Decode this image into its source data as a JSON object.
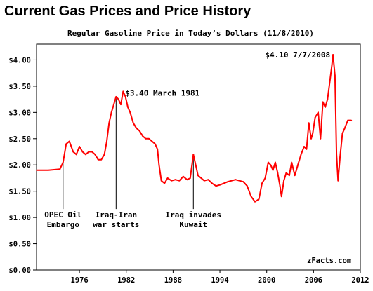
{
  "chart_data": {
    "type": "line",
    "title": "Current Gas Prices and Price History",
    "subtitle": "Regular Gasoline Price in Today’s Dollars (11/8/2010)",
    "source": "zFacts.com",
    "xlabel": "",
    "ylabel": "",
    "xlim": [
      1970.5,
      2012
    ],
    "ylim": [
      0,
      4.3
    ],
    "grid": false,
    "x_ticks": [
      1976,
      1982,
      1988,
      1994,
      2000,
      2006,
      2012
    ],
    "x_tick_labels": [
      "1976",
      "1982",
      "1988",
      "1994",
      "2000",
      "2006",
      "2012"
    ],
    "y_ticks": [
      0,
      0.5,
      1.0,
      1.5,
      2.0,
      2.5,
      3.0,
      3.5,
      4.0
    ],
    "y_tick_labels": [
      "$0.00",
      "$0.50",
      "$1.00",
      "$1.50",
      "$2.00",
      "$2.50",
      "$3.00",
      "$3.50",
      "$4.00"
    ],
    "series": [
      {
        "color": "#ff0000",
        "x": [
          1970.5,
          1972.0,
          1973.5,
          1973.9,
          1974.3,
          1974.7,
          1975.2,
          1975.6,
          1976.0,
          1976.4,
          1976.8,
          1977.2,
          1977.6,
          1978.0,
          1978.4,
          1978.8,
          1979.2,
          1979.5,
          1979.8,
          1980.1,
          1980.4,
          1980.7,
          1981.0,
          1981.3,
          1981.6,
          1981.9,
          1982.2,
          1982.5,
          1982.9,
          1983.3,
          1983.7,
          1984.1,
          1984.5,
          1984.9,
          1985.3,
          1985.7,
          1986.0,
          1986.2,
          1986.5,
          1986.9,
          1987.3,
          1987.8,
          1988.3,
          1988.8,
          1989.3,
          1989.8,
          1990.2,
          1990.6,
          1990.9,
          1991.2,
          1991.6,
          1992.0,
          1992.5,
          1993.0,
          1993.5,
          1994.0,
          1994.5,
          1995.0,
          1995.5,
          1996.0,
          1996.5,
          1997.0,
          1997.5,
          1998.0,
          1998.5,
          1999.0,
          1999.4,
          1999.8,
          2000.2,
          2000.5,
          2000.8,
          2001.1,
          2001.4,
          2001.7,
          2001.9,
          2002.2,
          2002.5,
          2002.9,
          2003.2,
          2003.6,
          2004.0,
          2004.4,
          2004.8,
          2005.1,
          2005.4,
          2005.7,
          2005.9,
          2006.2,
          2006.6,
          2006.9,
          2007.2,
          2007.5,
          2007.8,
          2008.1,
          2008.35,
          2008.5,
          2008.75,
          2008.95,
          2009.15,
          2009.4,
          2009.7,
          2010.0,
          2010.4,
          2010.85
        ],
        "y": [
          1.9,
          1.9,
          1.92,
          2.05,
          2.4,
          2.45,
          2.25,
          2.2,
          2.35,
          2.25,
          2.2,
          2.25,
          2.25,
          2.2,
          2.1,
          2.1,
          2.2,
          2.45,
          2.8,
          3.0,
          3.15,
          3.3,
          3.25,
          3.15,
          3.4,
          3.3,
          3.1,
          3.0,
          2.8,
          2.7,
          2.65,
          2.55,
          2.5,
          2.5,
          2.45,
          2.4,
          2.3,
          2.0,
          1.7,
          1.65,
          1.75,
          1.7,
          1.72,
          1.7,
          1.78,
          1.72,
          1.75,
          2.2,
          2.0,
          1.8,
          1.75,
          1.7,
          1.72,
          1.65,
          1.6,
          1.62,
          1.65,
          1.68,
          1.7,
          1.72,
          1.7,
          1.68,
          1.6,
          1.4,
          1.3,
          1.35,
          1.65,
          1.75,
          2.05,
          2.0,
          1.9,
          2.05,
          1.85,
          1.6,
          1.4,
          1.7,
          1.85,
          1.8,
          2.05,
          1.8,
          2.0,
          2.2,
          2.35,
          2.3,
          2.8,
          2.5,
          2.6,
          2.9,
          3.0,
          2.5,
          3.2,
          3.1,
          3.25,
          3.6,
          3.9,
          4.1,
          3.7,
          2.2,
          1.7,
          2.15,
          2.6,
          2.7,
          2.85,
          2.85
        ]
      }
    ],
    "annotations": [
      {
        "line1": "OPEC Oil",
        "line2": "Embargo",
        "x": 1973.9
      },
      {
        "line1": "Iraq-Iran",
        "line2": "war starts",
        "x": 1980.7
      },
      {
        "line1": "Iraq invades",
        "line2": "Kuwait",
        "x": 1990.6
      }
    ],
    "point_labels": [
      {
        "text": "$3.40 March 1981",
        "x": 1981.6,
        "y": 3.4
      },
      {
        "text": "$4.10 7/7/2008",
        "x": 2008.5,
        "y": 4.1
      }
    ]
  }
}
